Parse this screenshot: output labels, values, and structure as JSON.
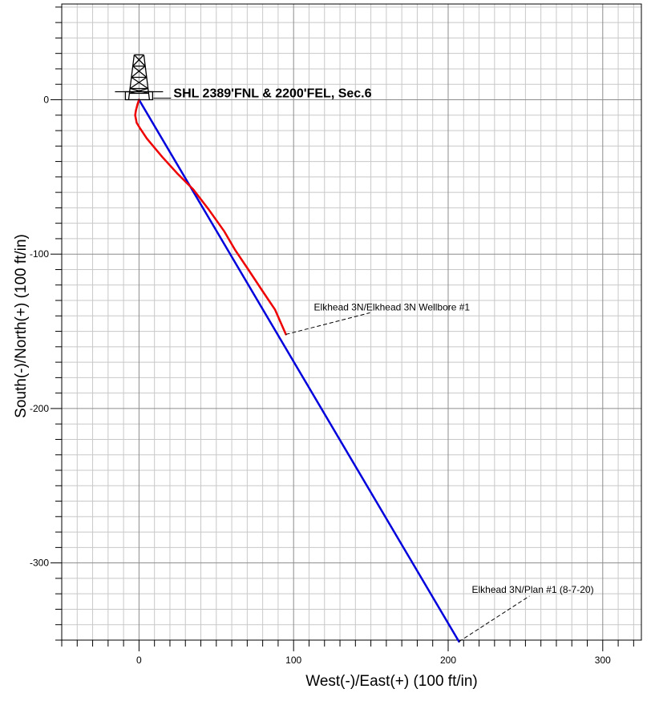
{
  "chart_data": {
    "type": "line",
    "xlabel": "West(-)/East(+) (100 ft/in)",
    "ylabel": "South(-)/North(+) (100 ft/in)",
    "xlim": [
      -50,
      325
    ],
    "ylim": [
      -350,
      62
    ],
    "x_ticks": [
      0,
      100,
      200,
      300
    ],
    "y_ticks": [
      0,
      -100,
      -200,
      -300
    ],
    "grid": true,
    "colors": {
      "actual": "#ee0000",
      "plan": "#0000dd",
      "grid_minor": "#c8c8c8",
      "grid_major": "#8c8c8c"
    },
    "series": [
      {
        "name": "Elkhead 3N/Plan #1 (8-7-20)",
        "color": "#0000dd",
        "x": [
          0,
          207
        ],
        "y": [
          0,
          -351
        ]
      },
      {
        "name": "Elkhead 3N/Elkhead 3N Wellbore #1",
        "color": "#ee0000",
        "x": [
          0,
          -1,
          -2,
          -2.5,
          -1.5,
          1,
          5,
          15,
          25,
          35,
          45,
          55,
          62,
          70,
          80,
          88,
          95
        ],
        "y": [
          0,
          -3,
          -7,
          -10,
          -15,
          -19,
          -25,
          -37,
          -48,
          -58,
          -71,
          -85,
          -97,
          -109,
          -124,
          -136,
          -152
        ]
      }
    ],
    "annotations": [
      {
        "text": "SHL 2389'FNL & 2200'FEL, Sec.6",
        "x": 0,
        "y": 0,
        "icon": "drilling-rig-icon"
      },
      {
        "text": "Elkhead 3N/Elkhead 3N Wellbore #1",
        "x": 95,
        "y": -152
      },
      {
        "text": "Elkhead 3N/Plan #1 (8-7-20)",
        "x": 207,
        "y": -351
      }
    ]
  }
}
